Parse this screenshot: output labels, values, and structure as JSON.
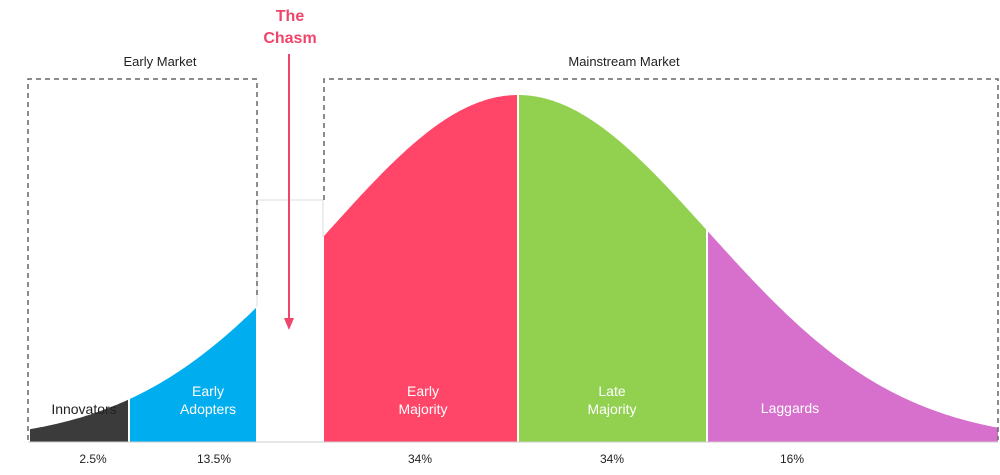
{
  "early_market": {
    "label": "Early Market"
  },
  "mainstream_market": {
    "label": "Mainstream Market"
  },
  "chasm": {
    "line1": "The",
    "line2": "Chasm",
    "color": "#f0456b"
  },
  "segments": [
    {
      "name": "Innovators",
      "line1": "Innovators",
      "line2": "",
      "percent": "2.5%",
      "color": "#3b3b3b",
      "share": 2.5
    },
    {
      "name": "Early Adopters",
      "line1": "Early",
      "line2": "Adopters",
      "percent": "13.5%",
      "color": "#00adee",
      "share": 13.5
    },
    {
      "name": "Early Majority",
      "line1": "Early",
      "line2": "Majority",
      "percent": "34%",
      "color": "#ff4568",
      "share": 34
    },
    {
      "name": "Late Majority",
      "line1": "Late",
      "line2": "Majority",
      "percent": "34%",
      "color": "#92d050",
      "share": 34
    },
    {
      "name": "Laggards",
      "line1": "Laggards",
      "line2": "",
      "percent": "16%",
      "color": "#d670cc",
      "share": 16
    }
  ]
}
